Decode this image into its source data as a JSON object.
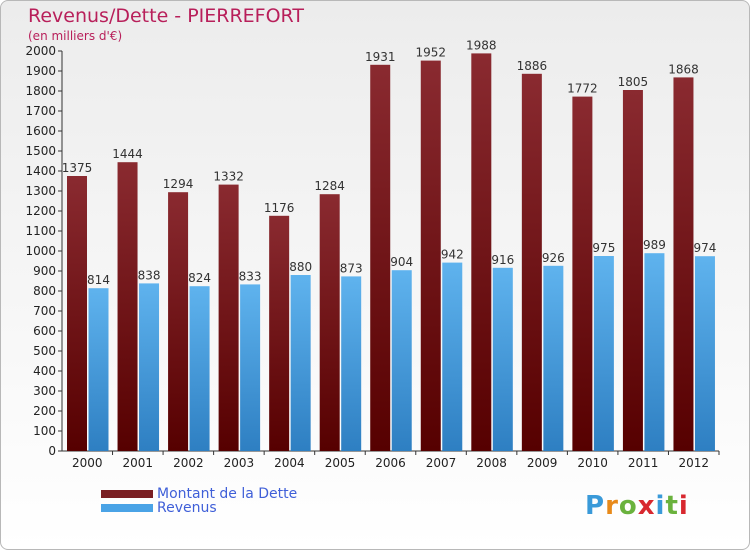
{
  "header": {
    "title": "Revenus/Dette - PIERREFORT",
    "subtitle": "(en milliers d'€)"
  },
  "legend": [
    {
      "label": "Montant de la Dette",
      "color": "#7a1e22"
    },
    {
      "label": "Revenus",
      "color": "#4aa3e6"
    }
  ],
  "logo": {
    "text": "Proxiti",
    "colors": [
      "#3a9ad9",
      "#e88a1a",
      "#6ab23d",
      "#d8282f",
      "#3a9ad9",
      "#6ab23d",
      "#d8282f"
    ]
  },
  "chart_data": {
    "type": "bar",
    "title": "Revenus/Dette - PIERREFORT",
    "subtitle": "(en milliers d'€)",
    "categories": [
      "2000",
      "2001",
      "2002",
      "2003",
      "2004",
      "2005",
      "2006",
      "2007",
      "2008",
      "2009",
      "2010",
      "2011",
      "2012"
    ],
    "series": [
      {
        "name": "Montant de la Dette",
        "color": "#7a1e22",
        "values": [
          1375,
          1444,
          1294,
          1332,
          1176,
          1284,
          1931,
          1952,
          1988,
          1886,
          1772,
          1805,
          1868
        ]
      },
      {
        "name": "Revenus",
        "color": "#4aa3e6",
        "values": [
          814,
          838,
          824,
          833,
          880,
          873,
          904,
          942,
          916,
          926,
          975,
          989,
          974
        ]
      }
    ],
    "ylim": [
      0,
      2000
    ],
    "yticks": [
      0,
      100,
      200,
      300,
      400,
      500,
      600,
      700,
      800,
      900,
      1000,
      1100,
      1200,
      1300,
      1400,
      1500,
      1600,
      1700,
      1800,
      1900,
      2000
    ],
    "grid": false,
    "legend_position": "bottom-left"
  }
}
